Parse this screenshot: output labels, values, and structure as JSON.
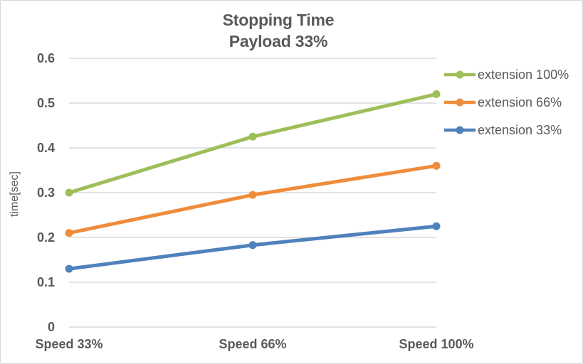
{
  "chart_data": {
    "type": "line",
    "title": "Stopping Time",
    "subtitle": "Payload 33%",
    "ylabel": "time[sec]",
    "categories": [
      "Speed 33%",
      "Speed 66%",
      "Speed 100%"
    ],
    "series": [
      {
        "name": "extension 100%",
        "color": "#9ebe59",
        "values": [
          0.3,
          0.425,
          0.52
        ]
      },
      {
        "name": "extension 66%",
        "color": "#ef8c3b",
        "values": [
          0.21,
          0.295,
          0.36
        ]
      },
      {
        "name": "extension 33%",
        "color": "#4f81bd",
        "values": [
          0.13,
          0.183,
          0.225
        ]
      }
    ],
    "ylim": [
      0,
      0.6
    ],
    "y_ticks": [
      0,
      0.1,
      0.2,
      0.3,
      0.4,
      0.5,
      0.6
    ],
    "y_tick_labels": [
      "0",
      "0.1",
      "0.2",
      "0.3",
      "0.4",
      "0.5",
      "0.6"
    ],
    "grid": true,
    "legend_position": "right",
    "marker": "circle"
  },
  "colors": {
    "text": "#595959",
    "grid": "#d9d9d9",
    "background": "#ffffff",
    "border": "#d7d7d7"
  }
}
